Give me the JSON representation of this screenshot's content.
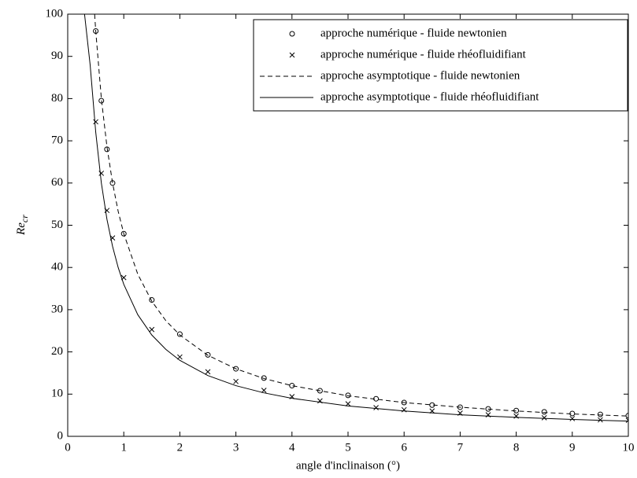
{
  "chart_data": {
    "type": "line",
    "xlabel": "angle d'inclinaison (°)",
    "ylabel": {
      "main": "Re",
      "sub": "cr"
    },
    "xlim": [
      0,
      10
    ],
    "ylim": [
      0,
      100
    ],
    "xticks": [
      0,
      1,
      2,
      3,
      4,
      5,
      6,
      7,
      8,
      9,
      10
    ],
    "yticks": [
      0,
      10,
      20,
      30,
      40,
      50,
      60,
      70,
      80,
      90,
      100
    ],
    "grid": false,
    "legend": "upper right",
    "series": [
      {
        "name": "approche numérique - fluide newtonien",
        "color": "#000000",
        "marker": "circle",
        "line": "none",
        "x": [
          0.5,
          0.6,
          0.7,
          0.8,
          1,
          1.5,
          2,
          2.5,
          3,
          3.5,
          4,
          4.5,
          5,
          5.5,
          6,
          6.5,
          7,
          7.5,
          8,
          8.5,
          9,
          9.5,
          10
        ],
        "values": [
          96,
          79.5,
          68,
          60,
          48,
          32.3,
          24.2,
          19.3,
          16,
          13.8,
          12,
          10.8,
          9.7,
          8.9,
          8,
          7.4,
          6.9,
          6.5,
          6.1,
          5.8,
          5.4,
          5.2,
          4.9
        ]
      },
      {
        "name": "approche numérique - fluide rhéofluidifiant",
        "color": "#000000",
        "marker": "cross",
        "line": "none",
        "x": [
          0.5,
          0.6,
          0.7,
          0.8,
          1,
          1.5,
          2,
          2.5,
          3,
          3.5,
          4,
          4.5,
          5,
          5.5,
          6,
          6.5,
          7,
          7.5,
          8,
          8.5,
          9,
          9.5,
          10
        ],
        "values": [
          74.5,
          62.3,
          53.5,
          47,
          37.6,
          25.3,
          18.8,
          15.3,
          13,
          10.9,
          9.4,
          8.4,
          7.7,
          6.8,
          6.3,
          6,
          5.5,
          5.1,
          4.8,
          4.4,
          4.2,
          3.9,
          3.8
        ]
      },
      {
        "name": "approche asymptotique - fluide newtonien",
        "color": "#000000",
        "marker": "none",
        "line": "dashed",
        "x": [
          0.48,
          0.5,
          0.6,
          0.7,
          0.8,
          0.9,
          1,
          1.25,
          1.5,
          1.75,
          2,
          2.5,
          3,
          3.5,
          4,
          5,
          6,
          7,
          8,
          9,
          10
        ],
        "values": [
          100,
          96,
          80,
          68.6,
          60,
          53.3,
          48,
          38.4,
          32,
          27.4,
          24,
          19.2,
          16,
          13.7,
          12,
          9.6,
          8,
          6.9,
          6,
          5.3,
          4.8
        ]
      },
      {
        "name": "approche asymptotique - fluide rhéofluidifiant",
        "color": "#000000",
        "marker": "none",
        "line": "solid",
        "x": [
          0.3,
          0.4,
          0.5,
          0.6,
          0.7,
          0.8,
          0.9,
          1,
          1.25,
          1.5,
          1.75,
          2,
          2.5,
          3,
          3.5,
          4,
          5,
          6,
          7,
          8,
          9,
          10
        ],
        "values": [
          100,
          88,
          72,
          60,
          51.4,
          45,
          40,
          36,
          28.8,
          24,
          20.6,
          18,
          14.4,
          12,
          10.3,
          9,
          7.2,
          6,
          5.1,
          4.5,
          4,
          3.6
        ]
      }
    ]
  }
}
